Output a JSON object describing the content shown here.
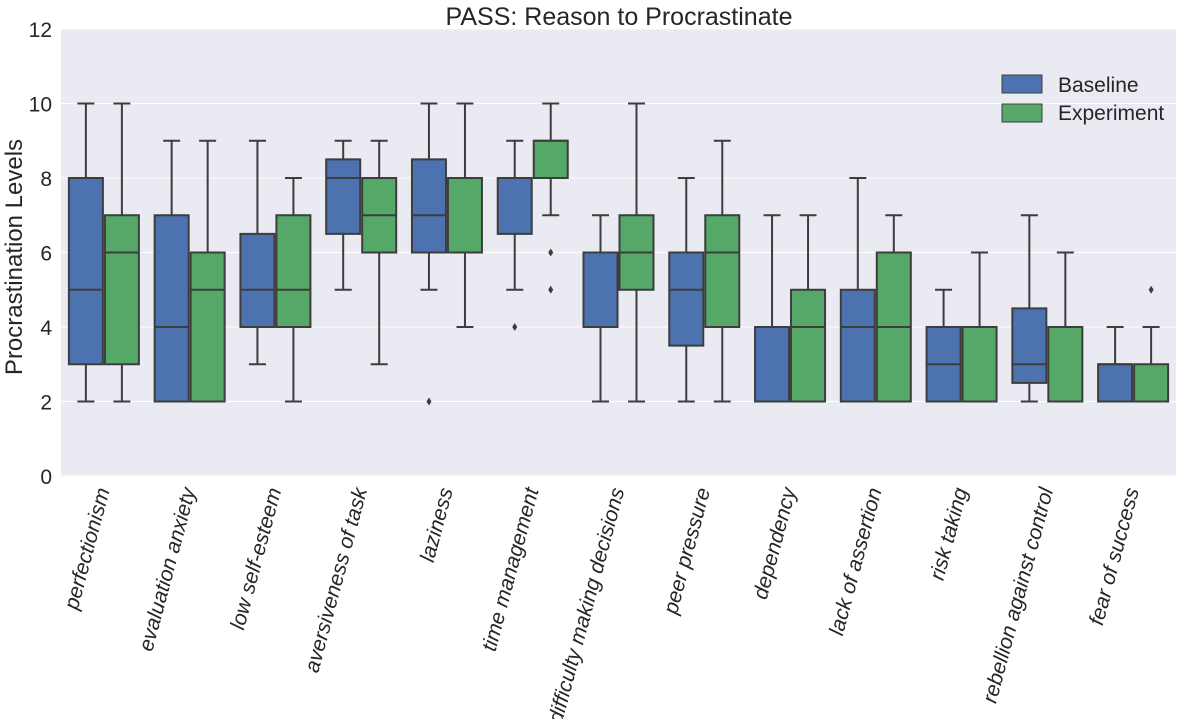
{
  "chart_data": {
    "type": "box",
    "title": "PASS: Reason to Procrastinate",
    "xlabel": "",
    "ylabel": "Procrastination Levels",
    "ylim": [
      0,
      12
    ],
    "yticks": [
      "0",
      "2",
      "4",
      "6",
      "8",
      "10",
      "12"
    ],
    "grid": true,
    "legend_position": "top-right",
    "categories": [
      "perfectionism",
      "evaluation anxiety",
      "low self-esteem",
      "aversiveness of task",
      "laziness",
      "time management",
      "difficulty making decisions",
      "peer pressure",
      "dependency",
      "lack of assertion",
      "risk taking",
      "rebellion against control",
      "fear of success"
    ],
    "series": [
      {
        "name": "Baseline",
        "color": "#4c72b0",
        "boxes": [
          {
            "whislo": 2,
            "q1": 3,
            "med": 5,
            "q3": 8,
            "whishi": 10,
            "fliers": []
          },
          {
            "whislo": 2,
            "q1": 2,
            "med": 4,
            "q3": 7,
            "whishi": 9,
            "fliers": []
          },
          {
            "whislo": 3,
            "q1": 4,
            "med": 5,
            "q3": 6.5,
            "whishi": 9,
            "fliers": []
          },
          {
            "whislo": 5,
            "q1": 6.5,
            "med": 8,
            "q3": 8.5,
            "whishi": 9,
            "fliers": []
          },
          {
            "whislo": 5,
            "q1": 6,
            "med": 7,
            "q3": 8.5,
            "whishi": 10,
            "fliers": [
              2
            ]
          },
          {
            "whislo": 5,
            "q1": 6.5,
            "med": 8,
            "q3": 8,
            "whishi": 9,
            "fliers": [
              4
            ]
          },
          {
            "whislo": 2,
            "q1": 4,
            "med": 6,
            "q3": 6,
            "whishi": 7,
            "fliers": []
          },
          {
            "whislo": 2,
            "q1": 3.5,
            "med": 5,
            "q3": 6,
            "whishi": 8,
            "fliers": []
          },
          {
            "whislo": 2,
            "q1": 2,
            "med": 4,
            "q3": 4,
            "whishi": 7,
            "fliers": []
          },
          {
            "whislo": 2,
            "q1": 2,
            "med": 4,
            "q3": 5,
            "whishi": 8,
            "fliers": []
          },
          {
            "whislo": 2,
            "q1": 2,
            "med": 3,
            "q3": 4,
            "whishi": 5,
            "fliers": []
          },
          {
            "whislo": 2,
            "q1": 2.5,
            "med": 3,
            "q3": 4.5,
            "whishi": 7,
            "fliers": []
          },
          {
            "whislo": 2,
            "q1": 2,
            "med": 3,
            "q3": 3,
            "whishi": 4,
            "fliers": []
          }
        ]
      },
      {
        "name": "Experiment",
        "color": "#55a868",
        "boxes": [
          {
            "whislo": 2,
            "q1": 3,
            "med": 6,
            "q3": 7,
            "whishi": 10,
            "fliers": []
          },
          {
            "whislo": 2,
            "q1": 2,
            "med": 5,
            "q3": 6,
            "whishi": 9,
            "fliers": []
          },
          {
            "whislo": 2,
            "q1": 4,
            "med": 5,
            "q3": 7,
            "whishi": 8,
            "fliers": []
          },
          {
            "whislo": 3,
            "q1": 6,
            "med": 7,
            "q3": 8,
            "whishi": 9,
            "fliers": []
          },
          {
            "whislo": 4,
            "q1": 6,
            "med": 8,
            "q3": 8,
            "whishi": 10,
            "fliers": []
          },
          {
            "whislo": 7,
            "q1": 8,
            "med": 9,
            "q3": 9,
            "whishi": 10,
            "fliers": [
              6,
              5
            ]
          },
          {
            "whislo": 2,
            "q1": 5,
            "med": 6,
            "q3": 7,
            "whishi": 10,
            "fliers": []
          },
          {
            "whislo": 2,
            "q1": 4,
            "med": 6,
            "q3": 7,
            "whishi": 9,
            "fliers": []
          },
          {
            "whislo": 2,
            "q1": 2,
            "med": 4,
            "q3": 5,
            "whishi": 7,
            "fliers": []
          },
          {
            "whislo": 2,
            "q1": 2,
            "med": 4,
            "q3": 6,
            "whishi": 7,
            "fliers": []
          },
          {
            "whislo": 2,
            "q1": 2,
            "med": 2,
            "q3": 4,
            "whishi": 6,
            "fliers": []
          },
          {
            "whislo": 2,
            "q1": 2,
            "med": 2,
            "q3": 4,
            "whishi": 6,
            "fliers": []
          },
          {
            "whislo": 2,
            "q1": 2,
            "med": 2,
            "q3": 3,
            "whishi": 4,
            "fliers": [
              5
            ]
          }
        ]
      }
    ]
  }
}
